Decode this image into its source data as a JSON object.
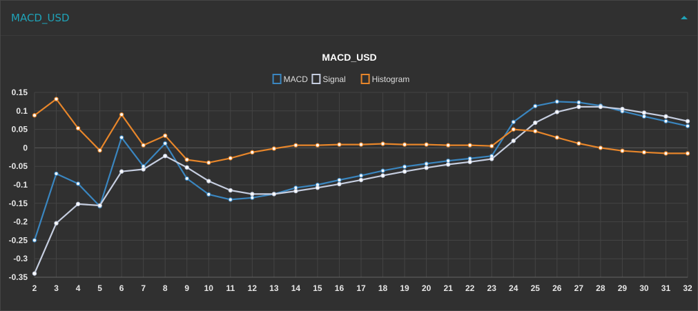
{
  "panel": {
    "title": "MACD_USD",
    "collapse_icon": "chevron-up-icon"
  },
  "colors": {
    "macd": "#3a86c0",
    "signal": "#c6cee0",
    "histogram": "#e8862a",
    "title": "#ffffff",
    "accent": "#1fa2b7"
  },
  "chart_data": {
    "type": "line",
    "title": "MACD_USD",
    "xlabel": "",
    "ylabel": "",
    "x": [
      2,
      3,
      4,
      5,
      6,
      7,
      8,
      9,
      10,
      11,
      12,
      13,
      14,
      15,
      16,
      17,
      18,
      19,
      20,
      21,
      22,
      23,
      24,
      25,
      26,
      27,
      28,
      29,
      30,
      31,
      32
    ],
    "ylim": [
      -0.35,
      0.15
    ],
    "yticks": [
      0.15,
      0.1,
      0.05,
      0,
      -0.05,
      -0.1,
      -0.15,
      -0.2,
      -0.25,
      -0.3,
      -0.35
    ],
    "ytick_labels": [
      "0.15",
      "0.1",
      "0.05",
      "0",
      "-0.05",
      "-0.1",
      "-0.15",
      "-0.2",
      "-0.25",
      "-0.3",
      "-0.35"
    ],
    "grid": true,
    "legend_position": "top-center",
    "series": [
      {
        "name": "MACD",
        "values": [
          -0.25,
          -0.07,
          -0.097,
          -0.158,
          0.028,
          -0.05,
          0.012,
          -0.083,
          -0.126,
          -0.14,
          -0.135,
          -0.125,
          -0.108,
          -0.1,
          -0.087,
          -0.075,
          -0.062,
          -0.051,
          -0.043,
          -0.035,
          -0.029,
          -0.022,
          0.07,
          0.113,
          0.125,
          0.123,
          0.114,
          0.099,
          0.085,
          0.072,
          0.059
        ]
      },
      {
        "name": "Signal",
        "values": [
          -0.34,
          -0.204,
          -0.152,
          -0.156,
          -0.064,
          -0.058,
          -0.022,
          -0.053,
          -0.09,
          -0.115,
          -0.125,
          -0.125,
          -0.117,
          -0.108,
          -0.098,
          -0.087,
          -0.075,
          -0.064,
          -0.054,
          -0.045,
          -0.038,
          -0.03,
          0.019,
          0.068,
          0.097,
          0.111,
          0.111,
          0.105,
          0.095,
          0.085,
          0.072
        ]
      },
      {
        "name": "Histogram",
        "values": [
          0.088,
          0.132,
          0.053,
          -0.007,
          0.09,
          0.007,
          0.033,
          -0.032,
          -0.04,
          -0.028,
          -0.012,
          -0.002,
          0.007,
          0.007,
          0.009,
          0.009,
          0.011,
          0.009,
          0.009,
          0.007,
          0.007,
          0.005,
          0.05,
          0.045,
          0.028,
          0.012,
          0.0,
          -0.008,
          -0.012,
          -0.015,
          -0.015
        ]
      }
    ]
  }
}
